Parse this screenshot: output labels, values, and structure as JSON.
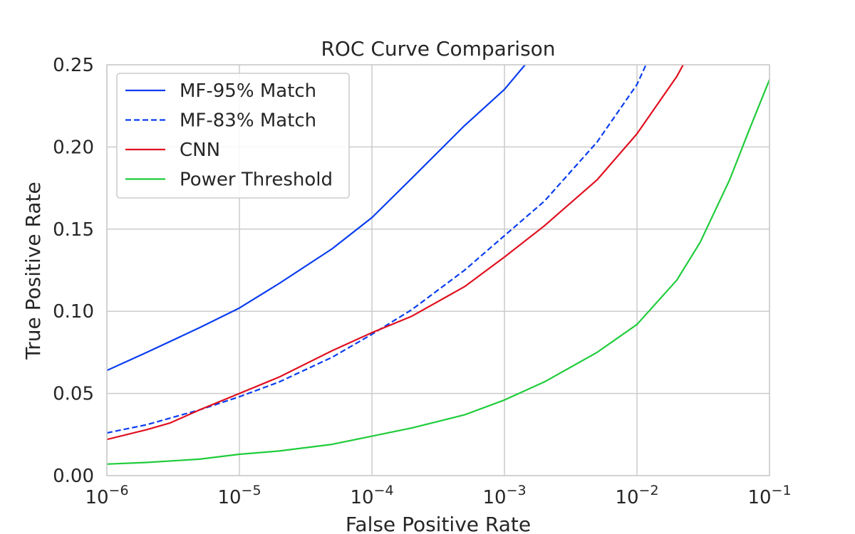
{
  "chart_data": {
    "type": "line",
    "title": "ROC Curve Comparison",
    "xlabel": "False Positive Rate",
    "ylabel": "True Positive Rate",
    "xscale": "log",
    "xlim": [
      1e-06,
      0.1
    ],
    "ylim": [
      0,
      0.25
    ],
    "grid": true,
    "legend_position": "top-left",
    "x_ticks": [
      {
        "value": 1e-06,
        "base": "10",
        "exp": "−6"
      },
      {
        "value": 1e-05,
        "base": "10",
        "exp": "−5"
      },
      {
        "value": 0.0001,
        "base": "10",
        "exp": "−4"
      },
      {
        "value": 0.001,
        "base": "10",
        "exp": "−3"
      },
      {
        "value": 0.01,
        "base": "10",
        "exp": "−2"
      },
      {
        "value": 0.1,
        "base": "10",
        "exp": "−1"
      }
    ],
    "y_ticks": [
      {
        "value": 0.0,
        "label": "0.00"
      },
      {
        "value": 0.05,
        "label": "0.05"
      },
      {
        "value": 0.1,
        "label": "0.10"
      },
      {
        "value": 0.15,
        "label": "0.15"
      },
      {
        "value": 0.2,
        "label": "0.20"
      },
      {
        "value": 0.25,
        "label": "0.25"
      }
    ],
    "series": [
      {
        "name": "MF-95% Match",
        "color": "#0a3df0",
        "dash": "solid",
        "x": [
          1e-06,
          2e-06,
          5e-06,
          1e-05,
          2e-05,
          5e-05,
          0.0001,
          0.0002,
          0.0005,
          0.001,
          0.0015
        ],
        "y": [
          0.064,
          0.075,
          0.09,
          0.102,
          0.117,
          0.138,
          0.157,
          0.181,
          0.213,
          0.235,
          0.252
        ]
      },
      {
        "name": "MF-83% Match",
        "color": "#0a3df0",
        "dash": "dashed",
        "x": [
          1e-06,
          2e-06,
          5e-06,
          1e-05,
          2e-05,
          5e-05,
          0.0001,
          0.0002,
          0.0005,
          0.001,
          0.002,
          0.005,
          0.01,
          0.012
        ],
        "y": [
          0.026,
          0.031,
          0.04,
          0.048,
          0.057,
          0.072,
          0.086,
          0.101,
          0.125,
          0.146,
          0.167,
          0.203,
          0.238,
          0.252
        ]
      },
      {
        "name": "CNN",
        "color": "#e0101f",
        "dash": "solid",
        "x": [
          1e-06,
          2e-06,
          3e-06,
          5e-06,
          1e-05,
          2e-05,
          5e-05,
          0.0001,
          0.0002,
          0.0005,
          0.001,
          0.002,
          0.005,
          0.01,
          0.02,
          0.023
        ],
        "y": [
          0.022,
          0.028,
          0.032,
          0.04,
          0.05,
          0.06,
          0.076,
          0.087,
          0.097,
          0.115,
          0.133,
          0.152,
          0.18,
          0.208,
          0.243,
          0.252
        ]
      },
      {
        "name": "Power Threshold",
        "color": "#1fcc3a",
        "dash": "solid",
        "x": [
          1e-06,
          2e-06,
          5e-06,
          1e-05,
          2e-05,
          5e-05,
          0.0001,
          0.0002,
          0.0005,
          0.001,
          0.002,
          0.005,
          0.01,
          0.02,
          0.03,
          0.05,
          0.07,
          0.1
        ],
        "y": [
          0.007,
          0.008,
          0.01,
          0.013,
          0.015,
          0.019,
          0.024,
          0.029,
          0.037,
          0.046,
          0.057,
          0.075,
          0.092,
          0.119,
          0.142,
          0.18,
          0.21,
          0.241
        ]
      }
    ]
  }
}
